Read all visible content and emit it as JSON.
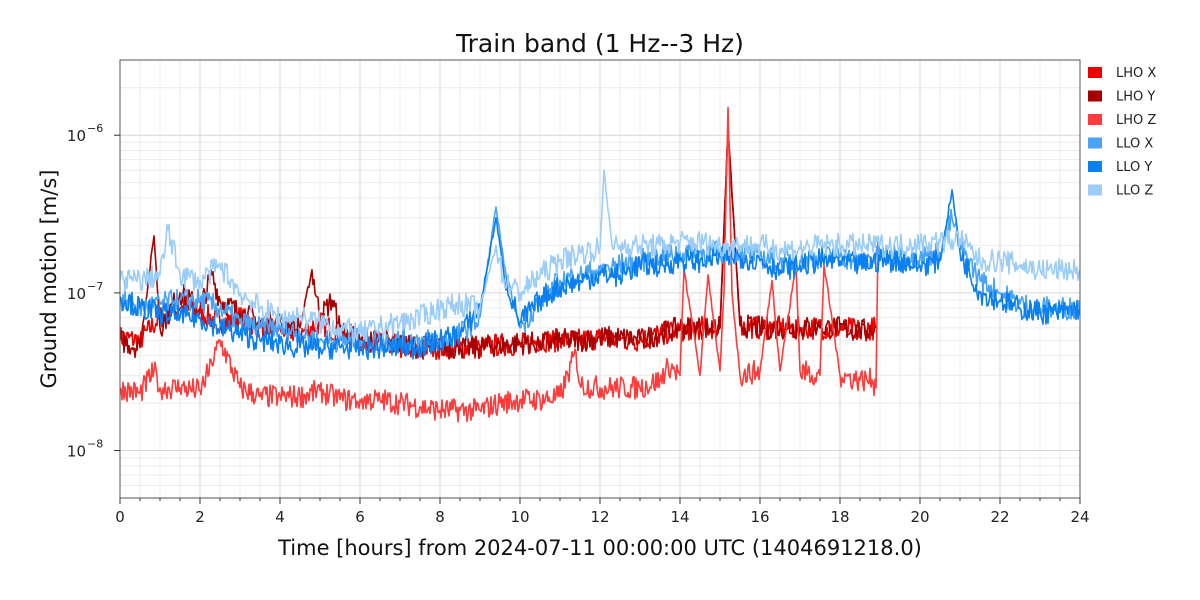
{
  "chart_data": {
    "type": "line",
    "title": "Train band (1 Hz--3 Hz)",
    "xlabel": "Time [hours] from 2024-07-11 00:00:00 UTC (1404691218.0)",
    "ylabel": "Ground motion [m/s]",
    "xlim": [
      0,
      24
    ],
    "ylim": [
      5e-09,
      3e-06
    ],
    "yscale": "log",
    "grid": true,
    "legend_position": "outside-right",
    "x_ticks": [
      "0",
      "2",
      "4",
      "6",
      "8",
      "10",
      "12",
      "14",
      "16",
      "18",
      "20",
      "22",
      "24"
    ],
    "y_ticks": [
      {
        "value": 1e-08,
        "base": "10",
        "exp": "−8"
      },
      {
        "value": 1e-07,
        "base": "10",
        "exp": "−7"
      },
      {
        "value": 1e-06,
        "base": "10",
        "exp": "−6"
      }
    ],
    "series": [
      {
        "name": "LHO X",
        "color": "#ee0000",
        "x": [
          0,
          0.5,
          1,
          1.5,
          2,
          2.5,
          3,
          3.5,
          4,
          4.5,
          5,
          5.5,
          6,
          6.5,
          7,
          7.5,
          8,
          8.5,
          9,
          9.5,
          10,
          10.5,
          11,
          11.5,
          12,
          12.5,
          13,
          13.5,
          14,
          14.5,
          15,
          15.2,
          15.5,
          16,
          16.5,
          17,
          17.5,
          18,
          18.5,
          18.9
        ],
        "y": [
          5.2e-08,
          5e-08,
          7e-08,
          8e-08,
          7.5e-08,
          6.5e-08,
          7e-08,
          6e-08,
          6e-08,
          5.5e-08,
          6.5e-08,
          5.5e-08,
          5e-08,
          5e-08,
          4.5e-08,
          4.5e-08,
          4.5e-08,
          4.5e-08,
          4.5e-08,
          4.7e-08,
          4.7e-08,
          5e-08,
          5e-08,
          5e-08,
          5.2e-08,
          5e-08,
          5e-08,
          5.5e-08,
          5.8e-08,
          6e-08,
          6e-08,
          1.1e-06,
          6.2e-08,
          6e-08,
          6e-08,
          6e-08,
          6e-08,
          6e-08,
          5.8e-08,
          6e-08
        ]
      },
      {
        "name": "LHO Y",
        "color": "#a80000",
        "x": [
          0,
          0.5,
          0.85,
          1,
          1.5,
          2,
          2.3,
          2.5,
          3,
          3.5,
          4,
          4.5,
          4.8,
          5,
          5.3,
          5.5,
          6,
          6.5,
          7,
          7.5,
          8,
          8.5,
          9,
          9.5,
          10,
          10.5,
          11,
          11.5,
          12,
          12.5,
          13,
          13.5,
          14,
          14.5,
          15,
          15.2,
          15.5,
          16,
          16.5,
          17,
          17.5,
          18,
          18.5,
          18.9
        ],
        "y": [
          5e-08,
          4.5e-08,
          2.3e-07,
          6e-08,
          1e-07,
          8e-08,
          1.3e-07,
          9e-08,
          7.5e-08,
          6.5e-08,
          6.5e-08,
          6e-08,
          1.4e-07,
          7e-08,
          9e-08,
          6e-08,
          5e-08,
          5e-08,
          4.8e-08,
          4.5e-08,
          4.5e-08,
          4.5e-08,
          4.5e-08,
          4.7e-08,
          4.8e-08,
          4.8e-08,
          5e-08,
          5e-08,
          5.2e-08,
          5.2e-08,
          5e-08,
          5.5e-08,
          6e-08,
          6e-08,
          6e-08,
          1.1e-06,
          6.2e-08,
          6e-08,
          6e-08,
          6e-08,
          6e-08,
          6e-08,
          5.7e-08,
          6e-08
        ]
      },
      {
        "name": "LHO Z",
        "color": "#ff3b3b",
        "x": [
          0,
          0.5,
          0.85,
          1,
          1.5,
          2,
          2.3,
          2.5,
          3,
          3.5,
          4,
          4.5,
          5,
          5.5,
          6,
          6.5,
          7,
          7.5,
          8,
          8.5,
          9,
          9.5,
          10,
          10.5,
          11,
          11.4,
          11.5,
          12,
          12.5,
          13,
          13.5,
          13.7,
          14,
          14.1,
          14.5,
          14.7,
          15,
          15.1,
          15.2,
          15.3,
          15.5,
          16,
          16.3,
          16.5,
          16.9,
          17,
          17.5,
          17.6,
          18,
          18.5,
          18.8,
          18.9,
          18.95
        ],
        "y": [
          2.5e-08,
          2.3e-08,
          3.2e-08,
          2.5e-08,
          2.5e-08,
          2.4e-08,
          3.5e-08,
          5e-08,
          2.5e-08,
          2.2e-08,
          2.2e-08,
          2.2e-08,
          2.4e-08,
          2.1e-08,
          2.1e-08,
          2.1e-08,
          2e-08,
          1.9e-08,
          1.8e-08,
          1.8e-08,
          1.8e-08,
          2e-08,
          2.1e-08,
          2.1e-08,
          2.2e-08,
          4.2e-08,
          2.6e-08,
          2.5e-08,
          2.5e-08,
          2.5e-08,
          2.8e-08,
          3.5e-08,
          3e-08,
          1.4e-07,
          3e-08,
          1.3e-07,
          3.2e-08,
          1e-07,
          1.5e-06,
          1e-07,
          3e-08,
          3.2e-08,
          1.2e-07,
          3.2e-08,
          1.5e-07,
          3.2e-08,
          3e-08,
          1.5e-07,
          3e-08,
          2.8e-08,
          2.8e-08,
          2.5e-08,
          2.2e-07
        ]
      },
      {
        "name": "LLO X",
        "color": "#4aa3f5",
        "x": [
          0,
          0.5,
          1,
          1.5,
          2,
          2.5,
          3,
          3.5,
          4,
          4.5,
          5,
          5.5,
          6,
          6.5,
          7,
          7.5,
          8,
          8.5,
          9,
          9.4,
          9.6,
          10,
          10.5,
          11,
          11.5,
          12,
          12.5,
          13,
          13.5,
          14,
          14.5,
          15,
          15.5,
          16,
          16.5,
          17,
          17.5,
          18,
          18.5,
          19,
          19.5,
          20,
          20.5,
          20.8,
          21,
          21.5,
          22,
          22.5,
          23,
          23.5,
          24
        ],
        "y": [
          9e-08,
          8e-08,
          8.5e-08,
          9e-08,
          9e-08,
          8e-08,
          6.5e-08,
          6e-08,
          6e-08,
          5.5e-08,
          5e-08,
          5e-08,
          5e-08,
          5e-08,
          5e-08,
          5e-08,
          5e-08,
          5.5e-08,
          7e-08,
          3.5e-07,
          1.5e-07,
          6e-08,
          9e-08,
          1.2e-07,
          1.3e-07,
          1.4e-07,
          1.5e-07,
          1.6e-07,
          1.7e-07,
          1.8e-07,
          1.8e-07,
          1.8e-07,
          1.8e-07,
          1.7e-07,
          1.6e-07,
          1.6e-07,
          1.7e-07,
          1.7e-07,
          1.6e-07,
          1.7e-07,
          1.7e-07,
          1.7e-07,
          1.8e-07,
          3e-07,
          2e-07,
          1.2e-07,
          1e-07,
          8.5e-08,
          8e-08,
          8e-08,
          8e-08
        ]
      },
      {
        "name": "LLO Y",
        "color": "#0a7ff0",
        "x": [
          0,
          0.5,
          1,
          1.5,
          2,
          2.5,
          3,
          3.5,
          4,
          4.5,
          5,
          5.5,
          6,
          6.5,
          7,
          7.5,
          8,
          8.5,
          9,
          9.4,
          9.6,
          10,
          10.5,
          11,
          11.5,
          12,
          12.5,
          13,
          13.5,
          14,
          14.5,
          15,
          15.5,
          16,
          16.5,
          17,
          17.5,
          18,
          18.5,
          19,
          19.5,
          20,
          20.5,
          20.8,
          21,
          21.5,
          22,
          22.5,
          23,
          23.5,
          24
        ],
        "y": [
          9.5e-08,
          8e-08,
          7.5e-08,
          7e-08,
          7e-08,
          6e-08,
          5.5e-08,
          5e-08,
          4.8e-08,
          4.5e-08,
          4.5e-08,
          4.5e-08,
          4.5e-08,
          4.5e-08,
          4.5e-08,
          4.5e-08,
          5e-08,
          5.5e-08,
          8e-08,
          3e-07,
          1.3e-07,
          6.5e-08,
          9e-08,
          1.1e-07,
          1.2e-07,
          1.3e-07,
          1.3e-07,
          1.5e-07,
          1.5e-07,
          1.6e-07,
          1.6e-07,
          1.7e-07,
          1.7e-07,
          1.6e-07,
          1.4e-07,
          1.5e-07,
          1.6e-07,
          1.6e-07,
          1.5e-07,
          1.6e-07,
          1.6e-07,
          1.5e-07,
          1.6e-07,
          4.5e-07,
          1.8e-07,
          1e-07,
          9e-08,
          8e-08,
          7.5e-08,
          7.5e-08,
          8e-08
        ]
      },
      {
        "name": "LLO Z",
        "color": "#9ccdf8",
        "x": [
          0,
          0.5,
          1,
          1.2,
          1.5,
          2,
          2.5,
          3,
          3.5,
          4,
          4.5,
          5,
          5.5,
          6,
          6.5,
          7,
          7.5,
          8,
          8.5,
          9,
          9.4,
          9.6,
          10,
          10.5,
          11,
          11.5,
          12,
          12.1,
          12.3,
          12.5,
          13,
          13.5,
          14,
          14.5,
          15,
          15.5,
          16,
          16.5,
          17,
          17.5,
          18,
          18.5,
          19,
          19.5,
          20,
          20.5,
          21,
          21.5,
          22,
          22.5,
          23,
          23.5,
          24
        ],
        "y": [
          1.2e-07,
          1.2e-07,
          1.3e-07,
          2.5e-07,
          1.3e-07,
          1.2e-07,
          1.5e-07,
          1e-07,
          8e-08,
          7e-08,
          7e-08,
          6.5e-08,
          6e-08,
          5.5e-08,
          6e-08,
          6.5e-08,
          7e-08,
          8e-08,
          8.5e-08,
          8e-08,
          2e-07,
          1.2e-07,
          1e-07,
          1.3e-07,
          1.6e-07,
          1.8e-07,
          1.9e-07,
          6e-07,
          2e-07,
          2e-07,
          2e-07,
          2e-07,
          2.1e-07,
          2.1e-07,
          2e-07,
          2e-07,
          2e-07,
          1.9e-07,
          1.9e-07,
          2e-07,
          2e-07,
          2e-07,
          2e-07,
          2e-07,
          2.1e-07,
          2.1e-07,
          2.2e-07,
          1.6e-07,
          1.6e-07,
          1.5e-07,
          1.4e-07,
          1.4e-07,
          1.4e-07
        ]
      }
    ]
  }
}
